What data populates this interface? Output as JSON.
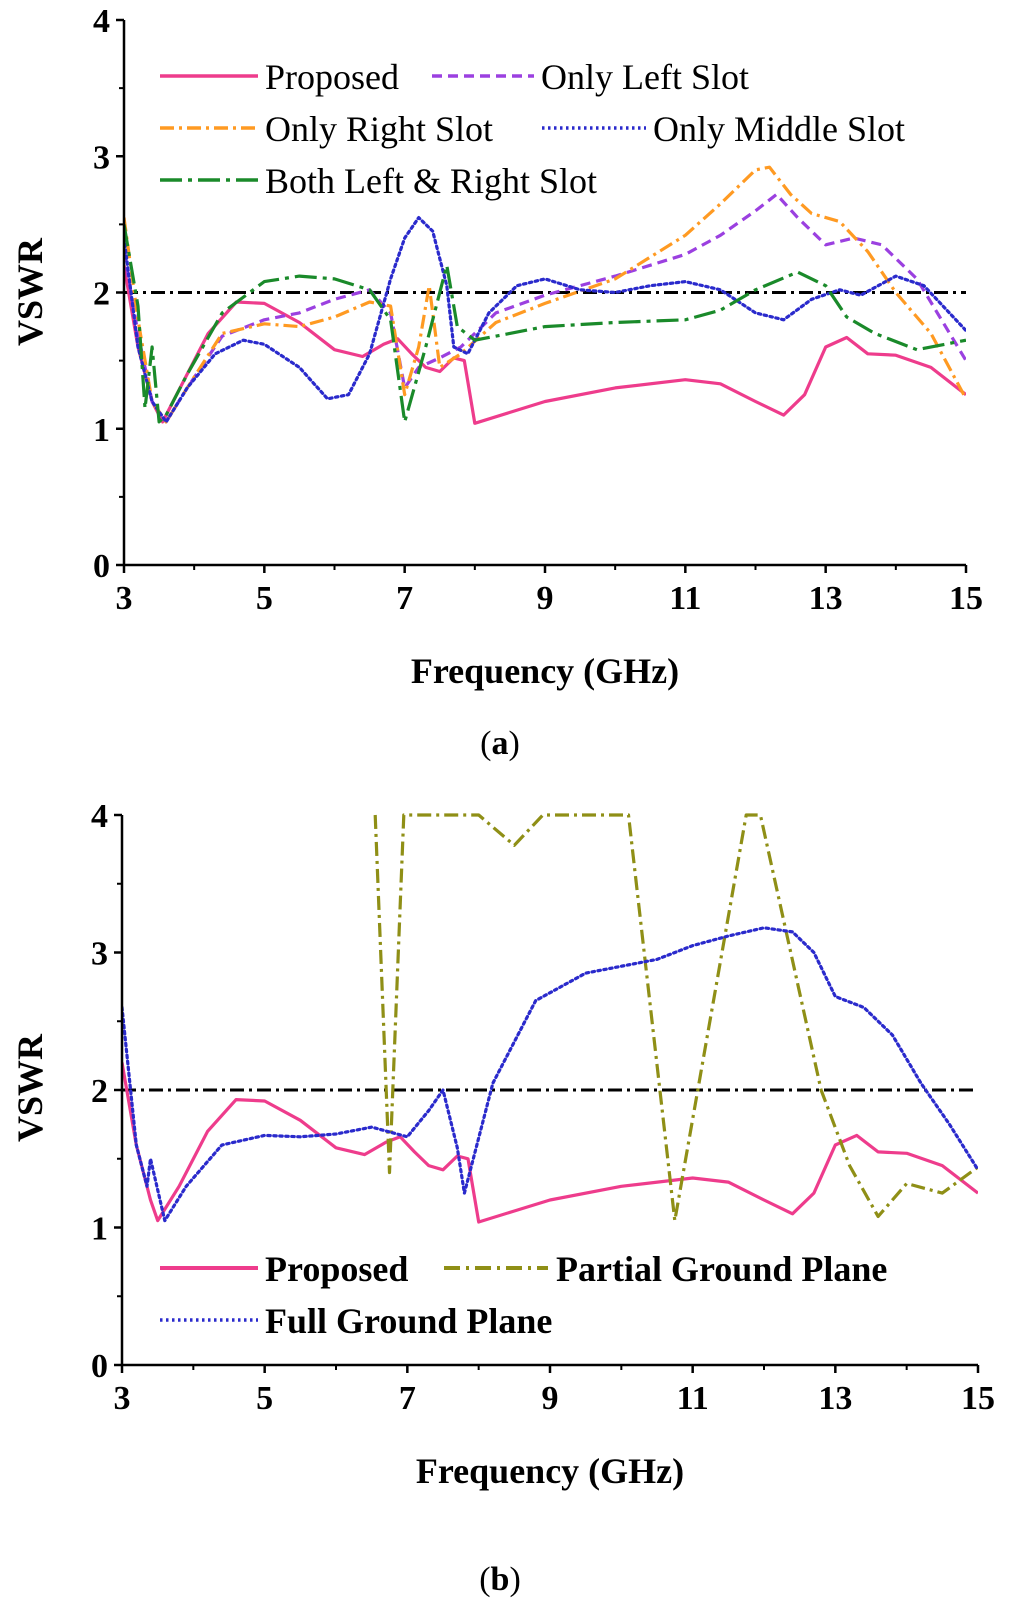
{
  "chart_data": [
    {
      "type": "line",
      "panel_label": "a",
      "xlabel": "Frequency (GHz)",
      "ylabel": "VSWR",
      "xlim": [
        3,
        15
      ],
      "ylim": [
        0,
        4
      ],
      "xticks": [
        "3",
        "5",
        "7",
        "9",
        "11",
        "13",
        "15"
      ],
      "yticks": [
        "0",
        "1",
        "2",
        "3",
        "4"
      ],
      "reference_line": {
        "y": 2,
        "style": "dash-dot",
        "color": "#000000"
      },
      "legend_position": "top",
      "series": [
        {
          "name": "Proposed",
          "color": "#ee3c8c",
          "dash": "solid",
          "points": [
            [
              3,
              2.2
            ],
            [
              3.2,
              1.6
            ],
            [
              3.4,
              1.2
            ],
            [
              3.55,
              1.05
            ],
            [
              3.8,
              1.3
            ],
            [
              4.2,
              1.7
            ],
            [
              4.6,
              1.93
            ],
            [
              5,
              1.92
            ],
            [
              5.5,
              1.78
            ],
            [
              6,
              1.58
            ],
            [
              6.4,
              1.53
            ],
            [
              6.7,
              1.62
            ],
            [
              6.9,
              1.66
            ],
            [
              7.1,
              1.55
            ],
            [
              7.3,
              1.45
            ],
            [
              7.5,
              1.42
            ],
            [
              7.7,
              1.52
            ],
            [
              7.85,
              1.5
            ],
            [
              8,
              1.04
            ],
            [
              8.5,
              1.12
            ],
            [
              9,
              1.2
            ],
            [
              10,
              1.3
            ],
            [
              11,
              1.36
            ],
            [
              11.5,
              1.33
            ],
            [
              12,
              1.2
            ],
            [
              12.4,
              1.1
            ],
            [
              12.7,
              1.25
            ],
            [
              13.0,
              1.6
            ],
            [
              13.3,
              1.67
            ],
            [
              13.6,
              1.55
            ],
            [
              14,
              1.54
            ],
            [
              14.5,
              1.45
            ],
            [
              15,
              1.25
            ]
          ]
        },
        {
          "name": "Only Left Slot",
          "color": "#9b40e0",
          "dash": "dashed",
          "points": [
            [
              3,
              2.3
            ],
            [
              3.2,
              1.7
            ],
            [
              3.4,
              1.2
            ],
            [
              3.6,
              1.05
            ],
            [
              3.9,
              1.3
            ],
            [
              4.4,
              1.68
            ],
            [
              5,
              1.8
            ],
            [
              5.5,
              1.85
            ],
            [
              6,
              1.95
            ],
            [
              6.5,
              2.02
            ],
            [
              6.8,
              1.85
            ],
            [
              7,
              1.3
            ],
            [
              7.2,
              1.45
            ],
            [
              7.5,
              1.52
            ],
            [
              7.8,
              1.6
            ],
            [
              8.3,
              1.85
            ],
            [
              9,
              1.98
            ],
            [
              10,
              2.12
            ],
            [
              11,
              2.28
            ],
            [
              11.5,
              2.42
            ],
            [
              12,
              2.6
            ],
            [
              12.3,
              2.72
            ],
            [
              12.6,
              2.55
            ],
            [
              13,
              2.35
            ],
            [
              13.4,
              2.4
            ],
            [
              13.8,
              2.35
            ],
            [
              14.3,
              2.1
            ],
            [
              15,
              1.5
            ]
          ]
        },
        {
          "name": "Only Right Slot",
          "color": "#ff9a22",
          "dash": "dash-dot",
          "points": [
            [
              3,
              2.55
            ],
            [
              3.2,
              1.8
            ],
            [
              3.4,
              1.2
            ],
            [
              3.6,
              1.05
            ],
            [
              3.9,
              1.3
            ],
            [
              4.4,
              1.7
            ],
            [
              5,
              1.77
            ],
            [
              5.5,
              1.75
            ],
            [
              6,
              1.82
            ],
            [
              6.5,
              1.93
            ],
            [
              6.8,
              1.9
            ],
            [
              7,
              1.25
            ],
            [
              7.2,
              1.6
            ],
            [
              7.35,
              2.05
            ],
            [
              7.5,
              1.45
            ],
            [
              7.8,
              1.55
            ],
            [
              8.3,
              1.78
            ],
            [
              9,
              1.92
            ],
            [
              10,
              2.1
            ],
            [
              11,
              2.42
            ],
            [
              11.5,
              2.65
            ],
            [
              12,
              2.9
            ],
            [
              12.2,
              2.92
            ],
            [
              12.5,
              2.72
            ],
            [
              12.8,
              2.58
            ],
            [
              13.2,
              2.52
            ],
            [
              13.6,
              2.3
            ],
            [
              14,
              2.0
            ],
            [
              14.5,
              1.7
            ],
            [
              15,
              1.22
            ]
          ]
        },
        {
          "name": "Only Middle Slot",
          "color": "#2a2acc",
          "dash": "dotted",
          "points": [
            [
              3,
              2.4
            ],
            [
              3.2,
              1.6
            ],
            [
              3.4,
              1.2
            ],
            [
              3.6,
              1.05
            ],
            [
              3.9,
              1.3
            ],
            [
              4.3,
              1.55
            ],
            [
              4.7,
              1.65
            ],
            [
              5,
              1.62
            ],
            [
              5.5,
              1.45
            ],
            [
              5.9,
              1.22
            ],
            [
              6.2,
              1.25
            ],
            [
              6.5,
              1.55
            ],
            [
              6.8,
              2.1
            ],
            [
              7.0,
              2.4
            ],
            [
              7.2,
              2.55
            ],
            [
              7.4,
              2.45
            ],
            [
              7.6,
              2.05
            ],
            [
              7.7,
              1.6
            ],
            [
              7.9,
              1.55
            ],
            [
              8.2,
              1.85
            ],
            [
              8.6,
              2.05
            ],
            [
              9,
              2.1
            ],
            [
              9.5,
              2.02
            ],
            [
              10,
              2.0
            ],
            [
              10.5,
              2.05
            ],
            [
              11,
              2.08
            ],
            [
              11.5,
              2.02
            ],
            [
              12,
              1.85
            ],
            [
              12.4,
              1.8
            ],
            [
              12.8,
              1.95
            ],
            [
              13.2,
              2.02
            ],
            [
              13.5,
              1.98
            ],
            [
              14,
              2.12
            ],
            [
              14.4,
              2.05
            ],
            [
              15,
              1.72
            ]
          ]
        },
        {
          "name": "Both Left & Right Slot",
          "color": "#1a8a2a",
          "dash": "long-dash-dot",
          "points": [
            [
              3,
              2.5
            ],
            [
              3.2,
              1.9
            ],
            [
              3.3,
              1.15
            ],
            [
              3.4,
              1.6
            ],
            [
              3.5,
              1.05
            ],
            [
              3.6,
              1.1
            ],
            [
              3.9,
              1.4
            ],
            [
              4.4,
              1.85
            ],
            [
              5,
              2.08
            ],
            [
              5.5,
              2.12
            ],
            [
              6,
              2.1
            ],
            [
              6.5,
              2.02
            ],
            [
              6.8,
              1.8
            ],
            [
              7,
              1.05
            ],
            [
              7.3,
              1.6
            ],
            [
              7.6,
              2.2
            ],
            [
              7.75,
              1.75
            ],
            [
              8,
              1.65
            ],
            [
              8.5,
              1.7
            ],
            [
              9,
              1.75
            ],
            [
              10,
              1.78
            ],
            [
              11,
              1.8
            ],
            [
              11.5,
              1.87
            ],
            [
              12,
              2.02
            ],
            [
              12.6,
              2.15
            ],
            [
              13,
              2.05
            ],
            [
              13.3,
              1.82
            ],
            [
              13.7,
              1.7
            ],
            [
              14.3,
              1.58
            ],
            [
              15,
              1.65
            ]
          ]
        }
      ]
    },
    {
      "type": "line",
      "panel_label": "b",
      "xlabel": "Frequency (GHz)",
      "ylabel": "VSWR",
      "xlim": [
        3,
        15
      ],
      "ylim": [
        0,
        4
      ],
      "xticks": [
        "3",
        "5",
        "7",
        "9",
        "11",
        "13",
        "15"
      ],
      "yticks": [
        "0",
        "1",
        "2",
        "3",
        "4"
      ],
      "reference_line": {
        "y": 2,
        "style": "dash-dot",
        "color": "#000000"
      },
      "legend_position": "bottom",
      "series": [
        {
          "name": "Proposed",
          "color": "#ee3c8c",
          "dash": "solid",
          "points": [
            [
              3,
              2.2
            ],
            [
              3.2,
              1.6
            ],
            [
              3.4,
              1.2
            ],
            [
              3.5,
              1.05
            ],
            [
              3.8,
              1.3
            ],
            [
              4.2,
              1.7
            ],
            [
              4.6,
              1.93
            ],
            [
              5,
              1.92
            ],
            [
              5.5,
              1.78
            ],
            [
              6,
              1.58
            ],
            [
              6.4,
              1.53
            ],
            [
              6.7,
              1.62
            ],
            [
              6.9,
              1.66
            ],
            [
              7.1,
              1.55
            ],
            [
              7.3,
              1.45
            ],
            [
              7.5,
              1.42
            ],
            [
              7.7,
              1.52
            ],
            [
              7.85,
              1.5
            ],
            [
              8,
              1.04
            ],
            [
              8.5,
              1.12
            ],
            [
              9,
              1.2
            ],
            [
              10,
              1.3
            ],
            [
              11,
              1.36
            ],
            [
              11.5,
              1.33
            ],
            [
              12,
              1.2
            ],
            [
              12.4,
              1.1
            ],
            [
              12.7,
              1.25
            ],
            [
              13.0,
              1.6
            ],
            [
              13.3,
              1.67
            ],
            [
              13.6,
              1.55
            ],
            [
              14,
              1.54
            ],
            [
              14.5,
              1.45
            ],
            [
              15,
              1.25
            ]
          ]
        },
        {
          "name": "Partial Ground Plane",
          "color": "#8f8f16",
          "dash": "dash-dot",
          "points": [
            [
              6.55,
              4.0
            ],
            [
              6.75,
              1.4
            ],
            [
              6.95,
              4.0
            ],
            [
              8.0,
              4.0
            ],
            [
              8.5,
              3.78
            ],
            [
              8.9,
              4.0
            ],
            [
              10.1,
              4.0
            ],
            [
              10.75,
              1.05
            ],
            [
              11.75,
              4.0
            ],
            [
              11.95,
              4.0
            ],
            [
              12.8,
              2.0
            ],
            [
              13.2,
              1.45
            ],
            [
              13.6,
              1.08
            ],
            [
              14.0,
              1.32
            ],
            [
              14.5,
              1.25
            ],
            [
              15,
              1.44
            ]
          ]
        },
        {
          "name": "Full Ground Plane",
          "color": "#2a2acc",
          "dash": "dotted",
          "points": [
            [
              3,
              2.6
            ],
            [
              3.2,
              1.6
            ],
            [
              3.35,
              1.3
            ],
            [
              3.4,
              1.5
            ],
            [
              3.6,
              1.05
            ],
            [
              3.9,
              1.3
            ],
            [
              4.4,
              1.6
            ],
            [
              5,
              1.67
            ],
            [
              5.5,
              1.66
            ],
            [
              6,
              1.68
            ],
            [
              6.5,
              1.73
            ],
            [
              7,
              1.66
            ],
            [
              7.3,
              1.85
            ],
            [
              7.5,
              2.0
            ],
            [
              7.7,
              1.58
            ],
            [
              7.8,
              1.25
            ],
            [
              8.2,
              2.05
            ],
            [
              8.8,
              2.65
            ],
            [
              9.5,
              2.85
            ],
            [
              10.5,
              2.95
            ],
            [
              11,
              3.05
            ],
            [
              11.5,
              3.12
            ],
            [
              12,
              3.18
            ],
            [
              12.4,
              3.15
            ],
            [
              12.7,
              3.0
            ],
            [
              13.0,
              2.68
            ],
            [
              13.4,
              2.6
            ],
            [
              13.8,
              2.4
            ],
            [
              14.2,
              2.05
            ],
            [
              14.6,
              1.75
            ],
            [
              15,
              1.42
            ]
          ]
        }
      ]
    }
  ]
}
